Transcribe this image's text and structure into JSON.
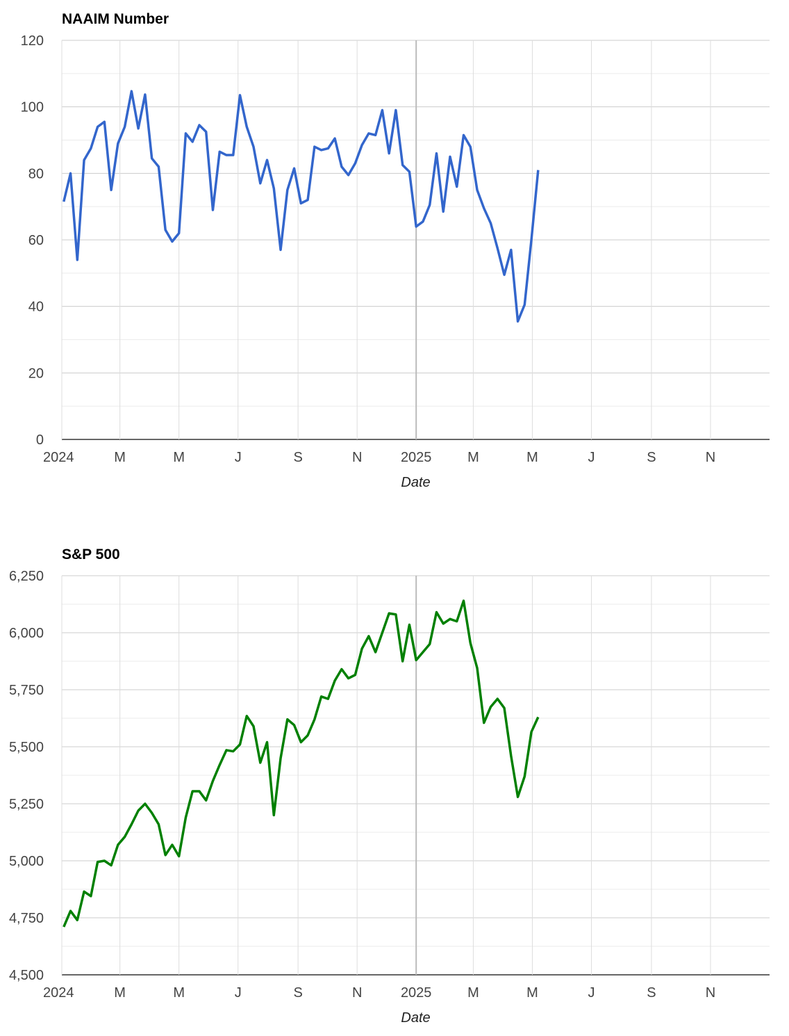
{
  "chart_data": [
    {
      "type": "line",
      "title": "NAAIM Number",
      "x_label": "Date",
      "x": [
        "2024-01-03",
        "2024-01-10",
        "2024-01-17",
        "2024-01-24",
        "2024-01-31",
        "2024-02-07",
        "2024-02-14",
        "2024-02-21",
        "2024-02-28",
        "2024-03-06",
        "2024-03-13",
        "2024-03-20",
        "2024-03-27",
        "2024-04-03",
        "2024-04-10",
        "2024-04-17",
        "2024-04-24",
        "2024-05-01",
        "2024-05-08",
        "2024-05-15",
        "2024-05-22",
        "2024-05-29",
        "2024-06-05",
        "2024-06-12",
        "2024-06-19",
        "2024-06-26",
        "2024-07-03",
        "2024-07-10",
        "2024-07-17",
        "2024-07-24",
        "2024-07-31",
        "2024-08-07",
        "2024-08-14",
        "2024-08-21",
        "2024-08-28",
        "2024-09-04",
        "2024-09-11",
        "2024-09-18",
        "2024-09-25",
        "2024-10-02",
        "2024-10-09",
        "2024-10-16",
        "2024-10-23",
        "2024-10-30",
        "2024-11-06",
        "2024-11-13",
        "2024-11-20",
        "2024-11-27",
        "2024-12-04",
        "2024-12-11",
        "2024-12-18",
        "2024-12-25",
        "2025-01-01",
        "2025-01-08",
        "2025-01-15",
        "2025-01-22",
        "2025-01-29",
        "2025-02-05",
        "2025-02-12",
        "2025-02-19",
        "2025-02-26",
        "2025-03-05",
        "2025-03-12",
        "2025-03-19",
        "2025-03-26",
        "2025-04-02",
        "2025-04-09",
        "2025-04-16",
        "2025-04-23",
        "2025-04-30",
        "2025-05-07"
      ],
      "series": [
        {
          "color": "#3366cc",
          "values": [
            71.5,
            80,
            54,
            84,
            87.5,
            94,
            95.5,
            75,
            89,
            94,
            104.7,
            93.5,
            103.7,
            84.5,
            82,
            63,
            59.5,
            62,
            92,
            89.5,
            94.5,
            92.5,
            69,
            86.5,
            85.5,
            85.5,
            103.5,
            94,
            88,
            77,
            84,
            75.5,
            57,
            75,
            81.5,
            71,
            72,
            88,
            87,
            87.5,
            90.5,
            82,
            79.5,
            83,
            88.5,
            92,
            91.5,
            99,
            86,
            99,
            82.5,
            80.5,
            64,
            65.5,
            70.5,
            86,
            68.5,
            85,
            76,
            91.5,
            88,
            75,
            69.5,
            65,
            57.5,
            49.5,
            57,
            35.5,
            40.5,
            60,
            81
          ]
        }
      ],
      "xlim": [
        "2024-01",
        "2026-01"
      ],
      "xticks": [
        {
          "value": "2024-01",
          "label": "2024"
        },
        {
          "value": "2024-03",
          "label": "M"
        },
        {
          "value": "2024-05",
          "label": "M"
        },
        {
          "value": "2024-07",
          "label": "J"
        },
        {
          "value": "2024-09",
          "label": "S"
        },
        {
          "value": "2024-11",
          "label": "N"
        },
        {
          "value": "2025-01",
          "label": "2025"
        },
        {
          "value": "2025-03",
          "label": "M"
        },
        {
          "value": "2025-05",
          "label": "M"
        },
        {
          "value": "2025-07",
          "label": "J"
        },
        {
          "value": "2025-09",
          "label": "S"
        },
        {
          "value": "2025-11",
          "label": "N"
        }
      ],
      "ylim": [
        0,
        120
      ],
      "yticks": [
        0,
        20,
        40,
        60,
        80,
        100,
        120
      ],
      "grid": true
    },
    {
      "type": "line",
      "title": "S&P 500",
      "x_label": "Date",
      "x": [
        "2024-01-03",
        "2024-01-10",
        "2024-01-17",
        "2024-01-24",
        "2024-01-31",
        "2024-02-07",
        "2024-02-14",
        "2024-02-21",
        "2024-02-28",
        "2024-03-06",
        "2024-03-13",
        "2024-03-20",
        "2024-03-27",
        "2024-04-03",
        "2024-04-10",
        "2024-04-17",
        "2024-04-24",
        "2024-05-01",
        "2024-05-08",
        "2024-05-15",
        "2024-05-22",
        "2024-05-29",
        "2024-06-05",
        "2024-06-12",
        "2024-06-19",
        "2024-06-26",
        "2024-07-03",
        "2024-07-10",
        "2024-07-17",
        "2024-07-24",
        "2024-07-31",
        "2024-08-07",
        "2024-08-14",
        "2024-08-21",
        "2024-08-28",
        "2024-09-04",
        "2024-09-11",
        "2024-09-18",
        "2024-09-25",
        "2024-10-02",
        "2024-10-09",
        "2024-10-16",
        "2024-10-23",
        "2024-10-30",
        "2024-11-06",
        "2024-11-13",
        "2024-11-20",
        "2024-11-27",
        "2024-12-04",
        "2024-12-11",
        "2024-12-18",
        "2024-12-25",
        "2025-01-01",
        "2025-01-08",
        "2025-01-15",
        "2025-01-22",
        "2025-01-29",
        "2025-02-05",
        "2025-02-12",
        "2025-02-19",
        "2025-02-26",
        "2025-03-05",
        "2025-03-12",
        "2025-03-19",
        "2025-03-26",
        "2025-04-02",
        "2025-04-09",
        "2025-04-16",
        "2025-04-23",
        "2025-04-30",
        "2025-05-07"
      ],
      "series": [
        {
          "color": "#008000",
          "values": [
            4710,
            4780,
            4740,
            4865,
            4845,
            4995,
            5000,
            4980,
            5070,
            5105,
            5160,
            5220,
            5250,
            5210,
            5160,
            5025,
            5070,
            5020,
            5190,
            5305,
            5305,
            5265,
            5350,
            5420,
            5485,
            5480,
            5510,
            5635,
            5590,
            5430,
            5520,
            5200,
            5450,
            5620,
            5595,
            5520,
            5550,
            5620,
            5720,
            5710,
            5790,
            5840,
            5800,
            5815,
            5930,
            5985,
            5915,
            6000,
            6085,
            6080,
            5875,
            6035,
            5880,
            5915,
            5950,
            6090,
            6040,
            6060,
            6050,
            6140,
            5955,
            5845,
            5605,
            5675,
            5710,
            5670,
            5460,
            5280,
            5370,
            5565,
            5630
          ]
        }
      ],
      "xlim": [
        "2024-01",
        "2026-01"
      ],
      "xticks": [
        {
          "value": "2024-01",
          "label": "2024"
        },
        {
          "value": "2024-03",
          "label": "M"
        },
        {
          "value": "2024-05",
          "label": "M"
        },
        {
          "value": "2024-07",
          "label": "J"
        },
        {
          "value": "2024-09",
          "label": "S"
        },
        {
          "value": "2024-11",
          "label": "N"
        },
        {
          "value": "2025-01",
          "label": "2025"
        },
        {
          "value": "2025-03",
          "label": "M"
        },
        {
          "value": "2025-05",
          "label": "M"
        },
        {
          "value": "2025-07",
          "label": "J"
        },
        {
          "value": "2025-09",
          "label": "S"
        },
        {
          "value": "2025-11",
          "label": "N"
        }
      ],
      "ylim": [
        4500,
        6250
      ],
      "yticks": [
        {
          "value": 4500,
          "label": "4,500"
        },
        {
          "value": 4750,
          "label": "4,750"
        },
        {
          "value": 5000,
          "label": "5,000"
        },
        {
          "value": 5250,
          "label": "5,250"
        },
        {
          "value": 5500,
          "label": "5,500"
        },
        {
          "value": 5750,
          "label": "5,750"
        },
        {
          "value": 6000,
          "label": "6,000"
        },
        {
          "value": 6250,
          "label": "6,250"
        }
      ],
      "grid": true
    }
  ]
}
